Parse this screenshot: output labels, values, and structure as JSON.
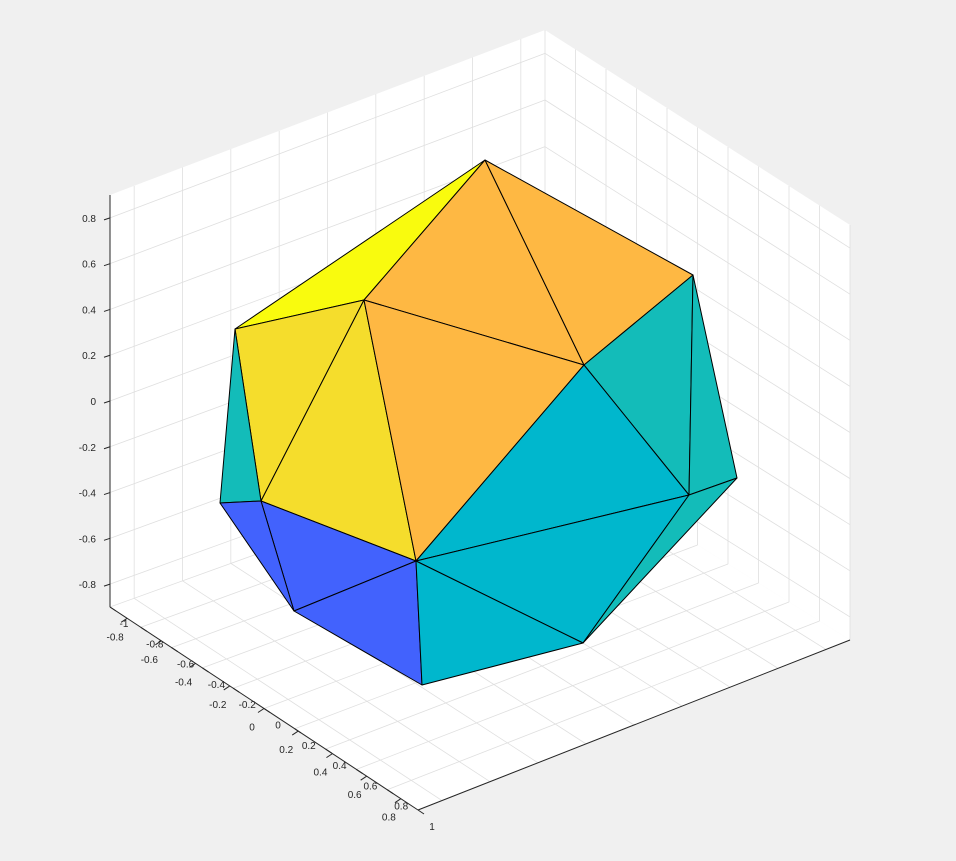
{
  "chart_data": {
    "type": "3d-surface",
    "title": "",
    "shape": "icosahedron",
    "edge_color": "#000000",
    "grid": true,
    "axes": {
      "x": {
        "lim": [
          -1,
          1
        ],
        "ticks": [
          -1,
          -0.8,
          -0.6,
          -0.4,
          -0.2,
          0,
          0.2,
          0.4,
          0.6,
          0.8,
          1
        ],
        "tick_labels": [
          "-1",
          "-0.8",
          "-0.6",
          "-0.4",
          "-0.2",
          "0",
          "0.2",
          "0.4",
          "0.6",
          "0.8",
          "1"
        ]
      },
      "y": {
        "lim": [
          -0.9,
          0.9
        ],
        "ticks": [
          -0.8,
          -0.6,
          -0.4,
          -0.2,
          0,
          0.2,
          0.4,
          0.6,
          0.8
        ],
        "tick_labels": [
          "-0.8",
          "-0.6",
          "-0.4",
          "-0.2",
          "0",
          "0.2",
          "0.4",
          "0.6",
          "0.8"
        ]
      },
      "z": {
        "lim": [
          -0.9,
          0.9
        ],
        "ticks": [
          -0.8,
          -0.6,
          -0.4,
          -0.2,
          0,
          0.2,
          0.4,
          0.6,
          0.8
        ],
        "tick_labels": [
          "-0.8",
          "-0.6",
          "-0.4",
          "-0.2",
          "0",
          "0.2",
          "0.4",
          "0.6",
          "0.8"
        ]
      }
    },
    "face_colors": [
      {
        "name": "yellow",
        "hex": "#f9fb0e"
      },
      {
        "name": "light-yellow",
        "hex": "#f5dd2c"
      },
      {
        "name": "orange",
        "hex": "#feb843"
      },
      {
        "name": "teal",
        "hex": "#13bcb9"
      },
      {
        "name": "cyan",
        "hex": "#00b7cd"
      },
      {
        "name": "blue",
        "hex": "#4262fd"
      }
    ]
  }
}
